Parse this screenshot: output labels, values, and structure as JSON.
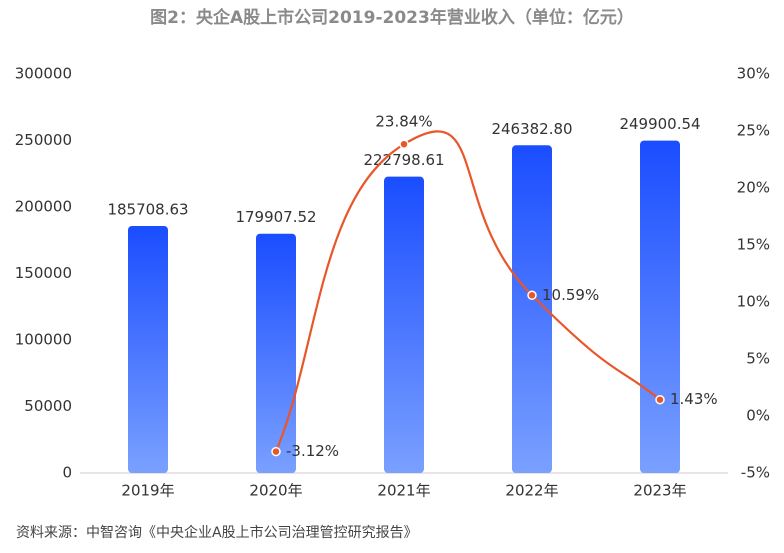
{
  "chart_data": {
    "type": "bar_line",
    "title": "图2：央企A股上市公司2019-2023年营业收入（单位：亿元）",
    "source": "资料来源：中智咨询《中央企业A股上市公司治理管控研究报告》",
    "categories": [
      "2019年",
      "2020年",
      "2021年",
      "2022年",
      "2023年"
    ],
    "series": [
      {
        "type": "bar",
        "color": "#1a4dff",
        "values": [
          185708.63,
          179907.52,
          222798.61,
          246382.8,
          249900.54
        ],
        "value_labels": [
          "185708.63",
          "179907.52",
          "222798.61",
          "246382.80",
          "249900.54"
        ]
      },
      {
        "type": "line",
        "axis": "y2",
        "color": "#e8562a",
        "values": [
          null,
          -3.12,
          23.84,
          10.59,
          1.43
        ],
        "value_labels": [
          null,
          "-3.12%",
          "23.84%",
          "10.59%",
          "1.43%"
        ]
      }
    ],
    "ylim": [
      0,
      300000
    ],
    "yticks": [
      0,
      50000,
      100000,
      150000,
      200000,
      250000,
      300000
    ],
    "y2lim": [
      -5,
      30
    ],
    "y2ticks": [
      {
        "value": -5,
        "label": "-5%"
      },
      {
        "value": 0,
        "label": "0%"
      },
      {
        "value": 5,
        "label": "5%"
      },
      {
        "value": 10,
        "label": "10%"
      },
      {
        "value": 15,
        "label": "15%"
      },
      {
        "value": 20,
        "label": "20%"
      },
      {
        "value": 25,
        "label": "25%"
      },
      {
        "value": 30,
        "label": "30%"
      }
    ]
  }
}
